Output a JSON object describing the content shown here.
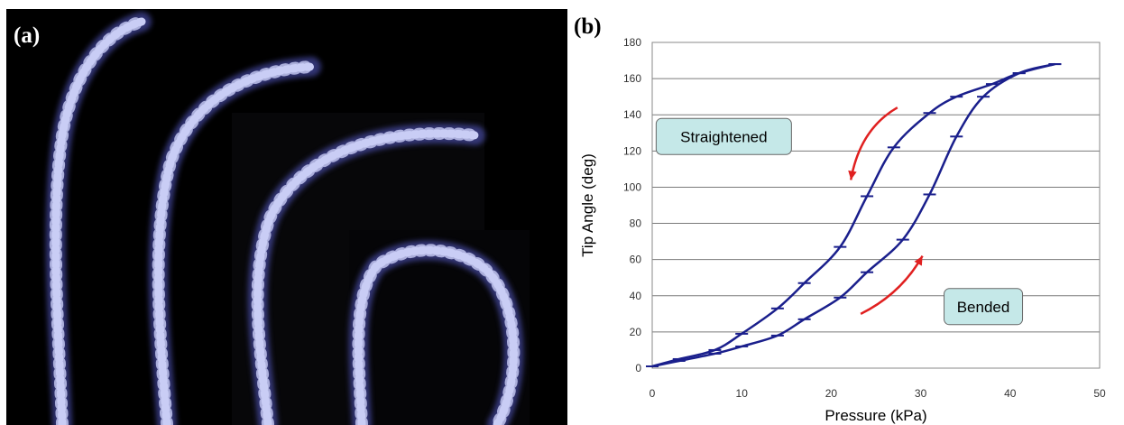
{
  "panel_a": {
    "label": "(a)",
    "colors": {
      "background": "#000000",
      "actuator": "#c9cdf5",
      "glow": "#5a5fd0"
    }
  },
  "panel_b": {
    "label": "(b)"
  },
  "chart_data": {
    "type": "line",
    "xlabel": "Pressure (kPa)",
    "ylabel": "Tip Angle (deg)",
    "xlim": [
      0,
      50
    ],
    "ylim": [
      0,
      180
    ],
    "xticks": [
      0,
      10,
      20,
      30,
      40,
      50
    ],
    "yticks": [
      0,
      20,
      40,
      60,
      80,
      100,
      120,
      140,
      160,
      180
    ],
    "grid": "horizontal",
    "color": "#1a1f8c",
    "series": [
      {
        "x": [
          0,
          3,
          7,
          10,
          14,
          17,
          21,
          24,
          28,
          31,
          34,
          37,
          41,
          45
        ],
        "y": [
          1,
          4,
          8,
          12,
          18,
          27,
          39,
          53,
          71,
          96,
          128,
          150,
          163,
          168
        ]
      },
      {
        "x": [
          0,
          3,
          7,
          10,
          14,
          17,
          21,
          24,
          27,
          31,
          34,
          38,
          41,
          45
        ],
        "y": [
          1,
          5,
          10,
          19,
          33,
          47,
          67,
          95,
          122,
          141,
          150,
          157,
          163,
          168
        ]
      }
    ],
    "annotations": [
      {
        "text": "Straightened",
        "at": [
          8,
          128
        ],
        "fill": "#c5e8e8"
      },
      {
        "text": "Bended",
        "at": [
          37,
          34
        ],
        "fill": "#c5e8e8"
      }
    ],
    "arrow_color": "#e02020"
  }
}
